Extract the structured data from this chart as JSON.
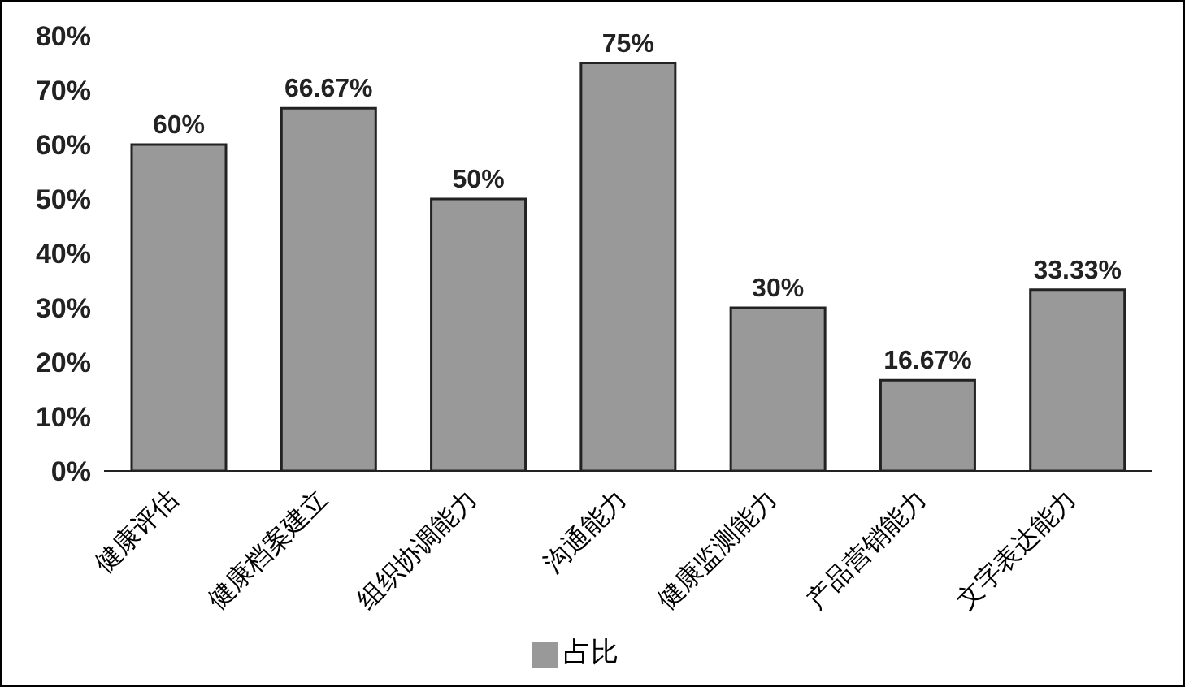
{
  "chart_data": {
    "type": "bar",
    "categories": [
      "健康评估",
      "健康档案建立",
      "组织协调能力",
      "沟通能力",
      "健康监测能力",
      "产品营销能力",
      "文字表达能力"
    ],
    "series": [
      {
        "name": "占比",
        "color": "#999999",
        "values": [
          60,
          66.67,
          50,
          75,
          30,
          16.67,
          33.33
        ],
        "value_labels": [
          "60%",
          "66.67%",
          "50%",
          "75%",
          "30%",
          "16.67%",
          "33.33%"
        ]
      }
    ],
    "ylim": [
      0,
      80
    ],
    "yticks": [
      {
        "value": 0,
        "label": "0%"
      },
      {
        "value": 10,
        "label": "10%"
      },
      {
        "value": 20,
        "label": "20%"
      },
      {
        "value": 30,
        "label": "30%"
      },
      {
        "value": 40,
        "label": "40%"
      },
      {
        "value": 50,
        "label": "50%"
      },
      {
        "value": 60,
        "label": "60%"
      },
      {
        "value": 70,
        "label": "70%"
      },
      {
        "value": 80,
        "label": "80%"
      }
    ],
    "grid": false,
    "legend": "bottom"
  }
}
